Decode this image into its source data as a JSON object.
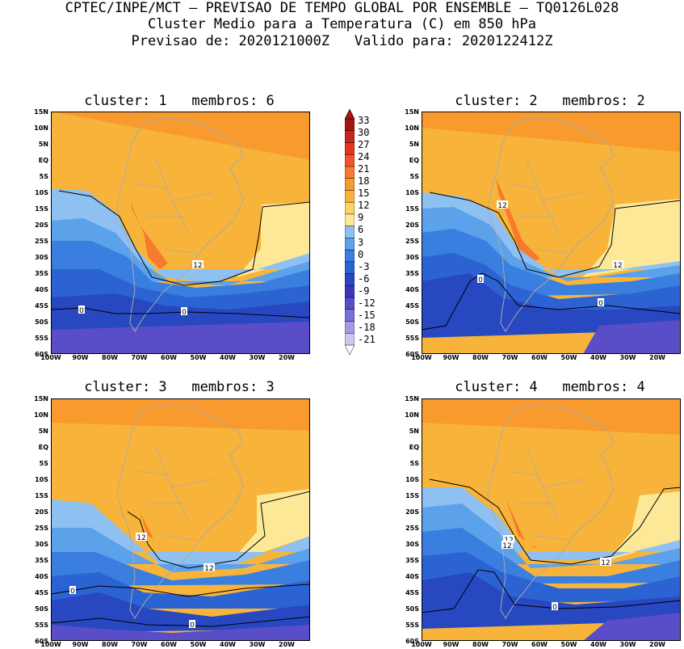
{
  "header": {
    "line1": "CPTEC/INPE/MCT — PREVISAO DE TEMPO GLOBAL POR ENSEMBLE — TQ0126L028",
    "line2": "Cluster Medio para a Temperatura (C) em 850 hPa",
    "line3": "Previsao de: 2020121000Z   Valido para: 2020122412Z"
  },
  "panels": [
    {
      "title": "cluster: 1   membros: 6",
      "contour_labels": [
        "0",
        "0",
        "12"
      ]
    },
    {
      "title": "cluster: 2   membros: 2",
      "contour_labels": [
        "12",
        "12",
        "0",
        "0"
      ]
    },
    {
      "title": "cluster: 3   membros: 3",
      "contour_labels": [
        "12",
        "12",
        "0",
        "0"
      ]
    },
    {
      "title": "cluster: 4   membros: 4",
      "contour_labels": [
        "12",
        "12",
        "12",
        "0"
      ]
    }
  ],
  "axes": {
    "lat_labels": [
      "15N",
      "10N",
      "5N",
      "EQ",
      "5S",
      "10S",
      "15S",
      "20S",
      "25S",
      "30S",
      "35S",
      "40S",
      "45S",
      "50S",
      "55S",
      "60S"
    ],
    "lon_labels": [
      "100W",
      "90W",
      "80W",
      "70W",
      "60W",
      "50W",
      "40W",
      "30W",
      "20W"
    ]
  },
  "colorbar": {
    "labels": [
      "33",
      "30",
      "27",
      "24",
      "21",
      "18",
      "15",
      "12",
      "9",
      "6",
      "3",
      "0",
      "-3",
      "-6",
      "-9",
      "-12",
      "-15",
      "-18",
      "-21"
    ],
    "colors": [
      "#a51515",
      "#c8241c",
      "#e3361f",
      "#f4542a",
      "#f77a2e",
      "#f89a2e",
      "#f8b43a",
      "#fad562",
      "#fde898",
      "#8fc0f2",
      "#5ba2ea",
      "#3a7fe0",
      "#2c63d2",
      "#2748c0",
      "#3a3ab8",
      "#5a4ec8",
      "#7a6ed8",
      "#a49ae6",
      "#cfc6f2"
    ]
  },
  "map_colors": {
    "hot": "#f4542a",
    "warm": "#f77a2e",
    "orange": "#f89a2e",
    "light_orange": "#f8b43a",
    "yellow": "#fde898",
    "light_blue": "#8fc0f2",
    "blue": "#5ba2ea",
    "mid_blue": "#3a7fe0",
    "deep_blue": "#2c63d2",
    "navy": "#2748c0",
    "purple": "#5a4ec8",
    "land_outline": "#a9a9a9"
  }
}
